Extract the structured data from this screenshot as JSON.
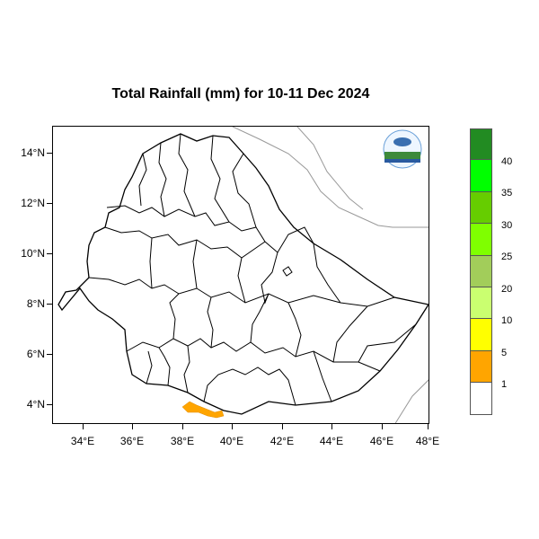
{
  "title": "Total Rainfall (mm) for 10-11 Dec 2024",
  "y_ticks": [
    "14°N",
    "12°N",
    "10°N",
    "8°N",
    "6°N",
    "4°N"
  ],
  "x_ticks": [
    "34°E",
    "36°E",
    "38°E",
    "40°E",
    "42°E",
    "44°E",
    "46°E",
    "48°E"
  ],
  "legend": {
    "labels": [
      "40",
      "35",
      "30",
      "25",
      "20",
      "10",
      "5",
      "1"
    ],
    "colors": [
      "#228B22",
      "#00FF00",
      "#66CD00",
      "#7FFF00",
      "#A2CD5A",
      "#CAFF70",
      "#FFFF00",
      "#FFA500",
      "#FFFFFF"
    ]
  },
  "rain_area": {
    "color": "#FFA500",
    "class": "1-5 mm",
    "region": "southern border near 38°E-40°E, 4°N"
  },
  "logo": {
    "name": "meteorology-agency-logo"
  }
}
